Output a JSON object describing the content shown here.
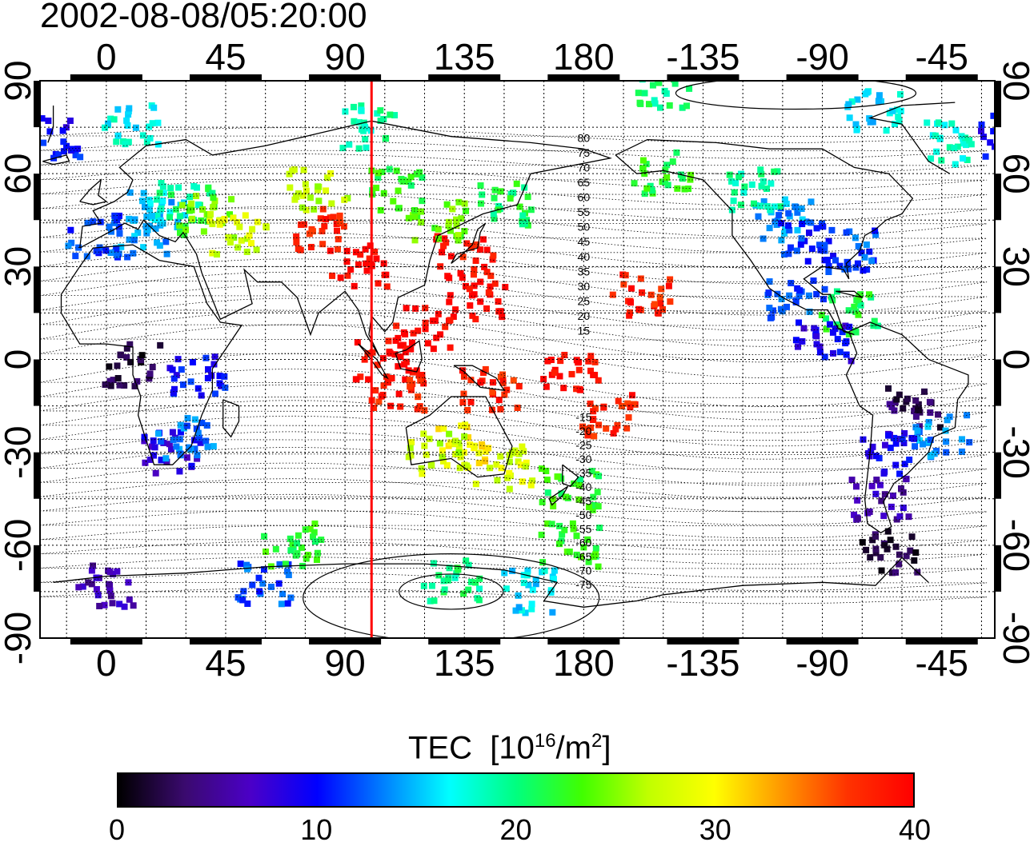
{
  "timestamp": "2002-08-08/05:20:00",
  "axes": {
    "top_lon_labels": [
      "0",
      "45",
      "90",
      "135",
      "180",
      "-135",
      "-90",
      "-45"
    ],
    "bottom_lon_labels": [
      "0",
      "45",
      "90",
      "135",
      "180",
      "-135",
      "-90",
      "-45"
    ],
    "left_lat_labels": [
      "90",
      "60",
      "30",
      "0",
      "-30",
      "-60",
      "-90"
    ],
    "right_lat_labels": [
      "90",
      "60",
      "30",
      "0",
      "-30",
      "-60",
      "-90"
    ]
  },
  "magnetic_latitude_labels": {
    "north": [
      "80",
      "75",
      "70",
      "65",
      "60",
      "55",
      "50",
      "45",
      "40",
      "35",
      "30",
      "25",
      "20",
      "15"
    ],
    "south": [
      "-15",
      "-20",
      "-25",
      "-30",
      "-35",
      "-40",
      "-45",
      "-50",
      "-55",
      "-60",
      "-65",
      "-70",
      "-75"
    ]
  },
  "red_meridian_lon": 100,
  "colorbar": {
    "title": "TEC",
    "unit_prefix": "[10",
    "unit_exp": "16",
    "unit_mid": "/m",
    "unit_exp2": "2",
    "unit_suffix": "]",
    "min": 0,
    "max": 40,
    "tick_labels": [
      "0",
      "10",
      "20",
      "30",
      "40"
    ],
    "colors": [
      "#000000",
      "#3a0a6e",
      "#4b00c8",
      "#0000ff",
      "#0080ff",
      "#00ffff",
      "#00ff80",
      "#40ff00",
      "#c0ff00",
      "#ffff00",
      "#ff9900",
      "#ff3300",
      "#ff0000"
    ]
  },
  "tec_clusters": [
    {
      "lon": 20,
      "lat": 48,
      "tec": 15
    },
    {
      "lon": 30,
      "lat": 50,
      "tec": 20
    },
    {
      "lon": 38,
      "lat": 46,
      "tec": 24
    },
    {
      "lon": 12,
      "lat": 40,
      "tec": 14
    },
    {
      "lon": -5,
      "lat": 40,
      "tec": 12
    },
    {
      "lon": 50,
      "lat": 40,
      "tec": 28
    },
    {
      "lon": 80,
      "lat": 42,
      "tec": 38
    },
    {
      "lon": 95,
      "lat": 30,
      "tec": 40
    },
    {
      "lon": 135,
      "lat": 33,
      "tec": 39
    },
    {
      "lon": 140,
      "lat": 20,
      "tec": 40
    },
    {
      "lon": 120,
      "lat": 10,
      "tec": 40
    },
    {
      "lon": 105,
      "lat": 0,
      "tec": 40
    },
    {
      "lon": 110,
      "lat": -10,
      "tec": 38
    },
    {
      "lon": 145,
      "lat": -10,
      "tec": 38
    },
    {
      "lon": 135,
      "lat": -28,
      "tec": 30
    },
    {
      "lon": 150,
      "lat": -35,
      "tec": 28
    },
    {
      "lon": 125,
      "lat": -30,
      "tec": 27
    },
    {
      "lon": 175,
      "lat": -42,
      "tec": 22
    },
    {
      "lon": -170,
      "lat": -18,
      "tec": 38
    },
    {
      "lon": -158,
      "lat": 21,
      "tec": 38
    },
    {
      "lon": 175,
      "lat": -5,
      "tec": 39
    },
    {
      "lon": 125,
      "lat": 45,
      "tec": 24
    },
    {
      "lon": 150,
      "lat": 50,
      "tec": 21
    },
    {
      "lon": -105,
      "lat": 45,
      "tec": 14
    },
    {
      "lon": -95,
      "lat": 38,
      "tec": 11
    },
    {
      "lon": -80,
      "lat": 35,
      "tec": 12
    },
    {
      "lon": -115,
      "lat": 55,
      "tec": 19
    },
    {
      "lon": -150,
      "lat": 60,
      "tec": 22
    },
    {
      "lon": -100,
      "lat": 20,
      "tec": 12
    },
    {
      "lon": -80,
      "lat": 15,
      "tec": 21
    },
    {
      "lon": -90,
      "lat": 5,
      "tec": 9
    },
    {
      "lon": -55,
      "lat": -15,
      "tec": 3
    },
    {
      "lon": -45,
      "lat": -25,
      "tec": 14
    },
    {
      "lon": -65,
      "lat": -30,
      "tec": 9
    },
    {
      "lon": -68,
      "lat": -45,
      "tec": 6
    },
    {
      "lon": -65,
      "lat": -62,
      "tec": 2
    },
    {
      "lon": 10,
      "lat": -2,
      "tec": 2
    },
    {
      "lon": 25,
      "lat": -30,
      "tec": 8
    },
    {
      "lon": 30,
      "lat": -25,
      "tec": 13
    },
    {
      "lon": 35,
      "lat": -5,
      "tec": 10
    },
    {
      "lon": 0,
      "lat": -73,
      "tec": 6
    },
    {
      "lon": 60,
      "lat": -72,
      "tec": 12
    },
    {
      "lon": 130,
      "lat": -72,
      "tec": 20
    },
    {
      "lon": 160,
      "lat": -75,
      "tec": 16
    },
    {
      "lon": 70,
      "lat": -60,
      "tec": 22
    },
    {
      "lon": -150,
      "lat": 88,
      "tec": 20
    },
    {
      "lon": -70,
      "lat": 80,
      "tec": 16
    },
    {
      "lon": -40,
      "lat": 70,
      "tec": 18
    },
    {
      "lon": 10,
      "lat": 75,
      "tec": 17
    },
    {
      "lon": 100,
      "lat": 75,
      "tec": 19
    },
    {
      "lon": 175,
      "lat": -60,
      "tec": 22
    },
    {
      "lon": -20,
      "lat": 72,
      "tec": 10
    },
    {
      "lon": 80,
      "lat": 55,
      "tec": 27
    },
    {
      "lon": 110,
      "lat": 55,
      "tec": 22
    }
  ]
}
